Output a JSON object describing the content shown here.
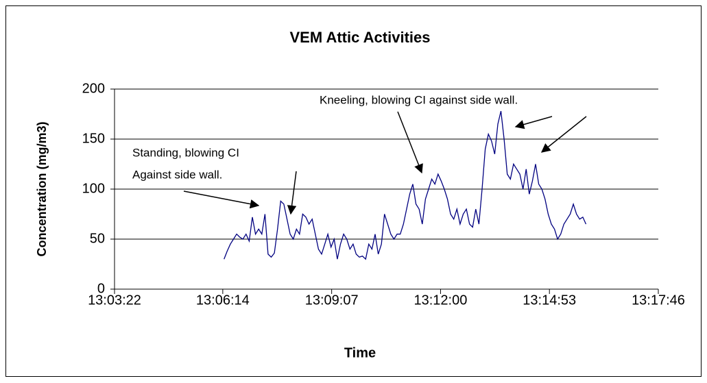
{
  "chart_data": {
    "type": "line",
    "title": "VEM  Attic Activities",
    "x_label": "Time",
    "y_label": "Concentration (mg/m3)",
    "color": "#000080",
    "x": [
      47176,
      47181,
      47186,
      47191,
      47196,
      47201,
      47206,
      47211,
      47216,
      47221,
      47226,
      47231,
      47236,
      47241,
      47246,
      47251,
      47256,
      47261,
      47266,
      47271,
      47276,
      47281,
      47286,
      47291,
      47296,
      47301,
      47306,
      47311,
      47316,
      47321,
      47326,
      47331,
      47336,
      47341,
      47346,
      47351,
      47356,
      47361,
      47366,
      47371,
      47376,
      47381,
      47386,
      47391,
      47396,
      47401,
      47406,
      47411,
      47416,
      47421,
      47426,
      47431,
      47436,
      47441,
      47446,
      47451,
      47456,
      47461,
      47466,
      47471,
      47476,
      47481,
      47486,
      47491,
      47496,
      47501,
      47506,
      47511,
      47516,
      47521,
      47526,
      47531,
      47536,
      47541,
      47546,
      47551,
      47556,
      47561,
      47566,
      47571,
      47576,
      47581,
      47586,
      47591,
      47596,
      47601,
      47606,
      47611,
      47616,
      47621,
      47626,
      47631,
      47636,
      47641,
      47646,
      47651,
      47656,
      47661,
      47666,
      47671,
      47676,
      47681,
      47686,
      47691,
      47696,
      47701,
      47706,
      47711,
      47716,
      47721,
      47726,
      47731,
      47736,
      47741,
      47746,
      47751
    ],
    "values": [
      30,
      38,
      45,
      50,
      55,
      52,
      50,
      55,
      48,
      72,
      55,
      60,
      55,
      75,
      35,
      32,
      36,
      60,
      88,
      85,
      70,
      55,
      50,
      60,
      55,
      75,
      72,
      65,
      70,
      55,
      40,
      35,
      45,
      55,
      42,
      50,
      30,
      45,
      55,
      50,
      40,
      45,
      35,
      32,
      33,
      30,
      45,
      40,
      55,
      35,
      45,
      75,
      65,
      55,
      50,
      55,
      55,
      65,
      80,
      95,
      105,
      85,
      80,
      65,
      90,
      100,
      110,
      105,
      115,
      108,
      100,
      90,
      75,
      70,
      80,
      65,
      75,
      80,
      65,
      62,
      80,
      65,
      100,
      140,
      155,
      148,
      135,
      165,
      178,
      150,
      115,
      110,
      125,
      120,
      115,
      100,
      120,
      95,
      108,
      125,
      105,
      100,
      90,
      75,
      65,
      60,
      50,
      55,
      65,
      70,
      75,
      85,
      75,
      70,
      72,
      65
    ],
    "xlim": [
      47002,
      47866
    ],
    "xticks": [
      {
        "value": 47002,
        "label": "13:03:22"
      },
      {
        "value": 47174,
        "label": "13:06:14"
      },
      {
        "value": 47347,
        "label": "13:09:07"
      },
      {
        "value": 47520,
        "label": "13:12:00"
      },
      {
        "value": 47693,
        "label": "13:14:53"
      },
      {
        "value": 47866,
        "label": "13:17:46"
      }
    ],
    "ylim": [
      0,
      200
    ],
    "yticks": [
      0,
      50,
      100,
      150,
      200
    ],
    "grid": true,
    "annotations": [
      "Standing, blowing CI",
      "Against side wall.",
      "Kneeling, blowing CI against side wall."
    ]
  }
}
